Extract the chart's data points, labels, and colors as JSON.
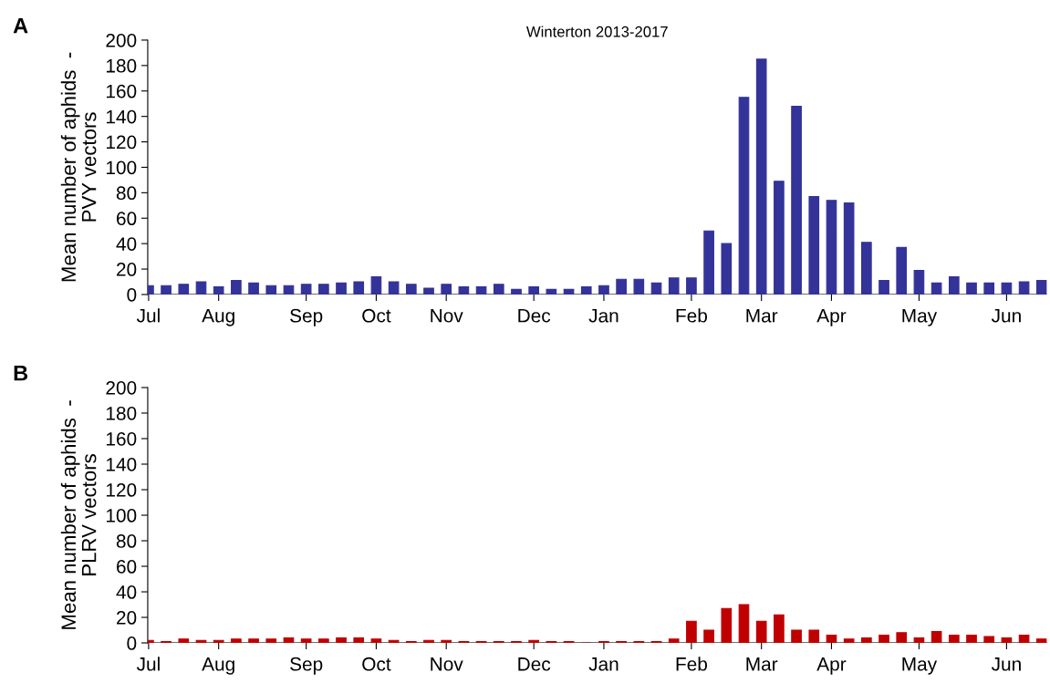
{
  "chart_data": [
    {
      "type": "bar",
      "title": "Winterton 2013-2017",
      "ylabel": "Mean number of aphids  -\nPVY vectors",
      "annotations": [
        "A"
      ],
      "categories": [
        "Jul",
        null,
        null,
        null,
        "Aug",
        null,
        null,
        null,
        null,
        "Sep",
        null,
        null,
        null,
        "Oct",
        null,
        null,
        null,
        "Nov",
        null,
        null,
        null,
        null,
        "Dec",
        null,
        null,
        null,
        "Jan",
        null,
        null,
        null,
        null,
        "Feb",
        null,
        null,
        null,
        "Mar",
        null,
        null,
        null,
        "Apr",
        null,
        null,
        null,
        null,
        "May",
        null,
        null,
        null,
        null,
        "Jun",
        null,
        null
      ],
      "series": [
        {
          "color": "#333399",
          "values": [
            7,
            7,
            8,
            10,
            6,
            11,
            9,
            7,
            7,
            8,
            8,
            9,
            10,
            14,
            10,
            8,
            5,
            8,
            6,
            6,
            8,
            4,
            6,
            4,
            4,
            6,
            7,
            12,
            12,
            9,
            13,
            13,
            50,
            40,
            155,
            185,
            89,
            148,
            77,
            74,
            72,
            41,
            11,
            37,
            19,
            9,
            14,
            9,
            9,
            9,
            10,
            11
          ]
        }
      ],
      "ylim": [
        0,
        200
      ],
      "yticks": [
        0,
        20,
        40,
        60,
        80,
        100,
        120,
        140,
        160,
        180,
        200
      ],
      "grid": false,
      "legend": false
    },
    {
      "type": "bar",
      "ylabel": "Mean number of aphids  -\nPLRV vectors",
      "annotations": [
        "B"
      ],
      "categories": [
        "Jul",
        null,
        null,
        null,
        "Aug",
        null,
        null,
        null,
        null,
        "Sep",
        null,
        null,
        null,
        "Oct",
        null,
        null,
        null,
        "Nov",
        null,
        null,
        null,
        null,
        "Dec",
        null,
        null,
        null,
        "Jan",
        null,
        null,
        null,
        null,
        "Feb",
        null,
        null,
        null,
        "Mar",
        null,
        null,
        null,
        "Apr",
        null,
        null,
        null,
        null,
        "May",
        null,
        null,
        null,
        null,
        "Jun",
        null,
        null
      ],
      "series": [
        {
          "color": "#c00000",
          "values": [
            2,
            1,
            3,
            2,
            2,
            3,
            3,
            3,
            4,
            3,
            3,
            4,
            4,
            3,
            2,
            1,
            2,
            2,
            1,
            1,
            1,
            1,
            2,
            1,
            1,
            0,
            1,
            1,
            1,
            1,
            3,
            17,
            10,
            27,
            30,
            17,
            22,
            10,
            10,
            6,
            3,
            4,
            6,
            8,
            4,
            9,
            6,
            6,
            5,
            4,
            6,
            3
          ]
        }
      ],
      "ylim": [
        0,
        200
      ],
      "yticks": [
        0,
        20,
        40,
        60,
        80,
        100,
        120,
        140,
        160,
        180,
        200
      ],
      "grid": false,
      "legend": false
    }
  ]
}
